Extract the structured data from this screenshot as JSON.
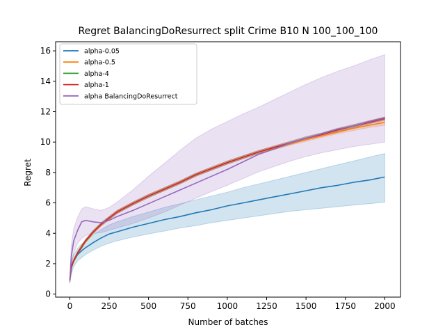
{
  "chart_data": {
    "type": "line",
    "title": "Regret BalancingDoResurrect split Crime B10 N 100_100_100",
    "xlabel": "Number of batches",
    "ylabel": "Regret",
    "xlim": [
      -90,
      2100
    ],
    "ylim": [
      -0.2,
      16.6
    ],
    "xticks": [
      0,
      250,
      500,
      750,
      1000,
      1250,
      1500,
      1750,
      2000
    ],
    "yticks": [
      0,
      2,
      4,
      6,
      8,
      10,
      12,
      14,
      16
    ],
    "grid": false,
    "legend_position": "top-left",
    "series": [
      {
        "name": "alpha-0.05",
        "color": "#1f77b4",
        "x": [
          0,
          10,
          25,
          50,
          75,
          100,
          150,
          200,
          250,
          300,
          400,
          500,
          600,
          700,
          800,
          900,
          1000,
          1100,
          1200,
          1300,
          1400,
          1500,
          1600,
          1700,
          1800,
          1900,
          2000
        ],
        "y": [
          0.9,
          1.7,
          2.2,
          2.6,
          2.85,
          3.05,
          3.4,
          3.7,
          3.95,
          4.1,
          4.4,
          4.65,
          4.9,
          5.1,
          5.35,
          5.55,
          5.8,
          6.0,
          6.2,
          6.4,
          6.6,
          6.8,
          7.0,
          7.15,
          7.35,
          7.5,
          7.7
        ],
        "band_lower": [
          0.7,
          1.3,
          1.8,
          2.2,
          2.4,
          2.6,
          2.9,
          3.15,
          3.35,
          3.5,
          3.75,
          3.95,
          4.15,
          4.35,
          4.5,
          4.7,
          4.85,
          5.0,
          5.15,
          5.3,
          5.45,
          5.55,
          5.65,
          5.75,
          5.85,
          5.95,
          6.05
        ],
        "band_upper": [
          1.1,
          2.1,
          2.6,
          3.0,
          3.3,
          3.5,
          3.9,
          4.25,
          4.55,
          4.75,
          5.1,
          5.4,
          5.7,
          5.95,
          6.2,
          6.45,
          6.7,
          7.0,
          7.25,
          7.5,
          7.75,
          8.0,
          8.25,
          8.5,
          8.75,
          9.0,
          9.25
        ]
      },
      {
        "name": "alpha-0.5",
        "color": "#ff7f0e",
        "x": [
          0,
          10,
          25,
          50,
          75,
          100,
          150,
          200,
          250,
          300,
          400,
          500,
          600,
          700,
          800,
          900,
          1000,
          1100,
          1200,
          1300,
          1400,
          1500,
          1600,
          1700,
          1800,
          1900,
          2000
        ],
        "y": [
          0.9,
          1.8,
          2.2,
          2.7,
          3.1,
          3.5,
          4.1,
          4.6,
          5.0,
          5.4,
          5.95,
          6.45,
          6.9,
          7.35,
          7.85,
          8.25,
          8.65,
          9.0,
          9.35,
          9.6,
          9.9,
          10.15,
          10.4,
          10.65,
          10.9,
          11.1,
          11.3
        ],
        "band_lower": [
          0.8,
          1.7,
          2.1,
          2.6,
          3.0,
          3.4,
          4.0,
          4.5,
          4.9,
          5.3,
          5.85,
          6.35,
          6.8,
          7.25,
          7.75,
          8.15,
          8.55,
          8.9,
          9.25,
          9.5,
          9.8,
          10.05,
          10.3,
          10.55,
          10.75,
          10.95,
          11.1
        ],
        "band_upper": [
          1.0,
          1.9,
          2.3,
          2.8,
          3.2,
          3.6,
          4.2,
          4.7,
          5.1,
          5.5,
          6.05,
          6.55,
          7.0,
          7.45,
          7.95,
          8.35,
          8.75,
          9.1,
          9.45,
          9.7,
          10.0,
          10.25,
          10.5,
          10.75,
          11.05,
          11.25,
          11.5
        ]
      },
      {
        "name": "alpha-4",
        "color": "#2ca02c",
        "x": [
          0,
          10,
          25,
          50,
          75,
          100,
          150,
          200,
          250,
          300,
          400,
          500,
          600,
          700,
          800,
          900,
          1000,
          1100,
          1200,
          1300,
          1400,
          1500,
          1600,
          1700,
          1800,
          1900,
          2000
        ],
        "y": [
          0.9,
          1.8,
          2.2,
          2.7,
          3.1,
          3.5,
          4.1,
          4.6,
          5.0,
          5.4,
          5.95,
          6.45,
          6.9,
          7.35,
          7.85,
          8.25,
          8.65,
          9.0,
          9.35,
          9.65,
          9.95,
          10.25,
          10.5,
          10.8,
          11.05,
          11.3,
          11.55
        ],
        "band_lower": [
          0.8,
          1.7,
          2.1,
          2.6,
          3.0,
          3.4,
          4.0,
          4.5,
          4.9,
          5.3,
          5.85,
          6.35,
          6.8,
          7.25,
          7.75,
          8.15,
          8.55,
          8.9,
          9.25,
          9.55,
          9.85,
          10.15,
          10.4,
          10.7,
          10.95,
          11.2,
          11.45
        ],
        "band_upper": [
          1.0,
          1.9,
          2.3,
          2.8,
          3.2,
          3.6,
          4.2,
          4.7,
          5.1,
          5.5,
          6.05,
          6.55,
          7.0,
          7.45,
          7.95,
          8.35,
          8.75,
          9.1,
          9.45,
          9.75,
          10.05,
          10.35,
          10.6,
          10.9,
          11.15,
          11.4,
          11.65
        ]
      },
      {
        "name": "alpha-1",
        "color": "#d62728",
        "x": [
          0,
          10,
          25,
          50,
          75,
          100,
          150,
          200,
          250,
          300,
          400,
          500,
          600,
          700,
          800,
          900,
          1000,
          1100,
          1200,
          1300,
          1400,
          1500,
          1600,
          1700,
          1800,
          1900,
          2000
        ],
        "y": [
          0.9,
          1.8,
          2.2,
          2.7,
          3.1,
          3.5,
          4.1,
          4.6,
          5.0,
          5.4,
          5.95,
          6.45,
          6.9,
          7.35,
          7.85,
          8.25,
          8.65,
          9.0,
          9.35,
          9.65,
          9.95,
          10.25,
          10.5,
          10.8,
          11.05,
          11.3,
          11.55
        ],
        "band_lower": [
          0.8,
          1.7,
          2.1,
          2.6,
          3.0,
          3.4,
          4.0,
          4.5,
          4.9,
          5.3,
          5.85,
          6.35,
          6.8,
          7.25,
          7.75,
          8.15,
          8.55,
          8.9,
          9.25,
          9.55,
          9.85,
          10.15,
          10.4,
          10.7,
          10.95,
          11.2,
          11.45
        ],
        "band_upper": [
          1.0,
          1.9,
          2.3,
          2.8,
          3.2,
          3.6,
          4.2,
          4.7,
          5.1,
          5.5,
          6.05,
          6.55,
          7.0,
          7.45,
          7.95,
          8.35,
          8.75,
          9.1,
          9.45,
          9.75,
          10.05,
          10.35,
          10.6,
          10.9,
          11.15,
          11.4,
          11.65
        ]
      },
      {
        "name": "alpha BalancingDoResurrect",
        "color": "#9467bd",
        "x": [
          0,
          10,
          25,
          50,
          75,
          100,
          150,
          200,
          250,
          300,
          400,
          500,
          600,
          700,
          800,
          900,
          1000,
          1100,
          1200,
          1300,
          1400,
          1500,
          1600,
          1700,
          1800,
          1900,
          2000
        ],
        "y": [
          0.9,
          2.5,
          3.5,
          4.2,
          4.75,
          4.85,
          4.75,
          4.7,
          4.85,
          5.1,
          5.5,
          5.95,
          6.4,
          6.85,
          7.3,
          7.75,
          8.2,
          8.7,
          9.2,
          9.55,
          9.95,
          10.25,
          10.55,
          10.85,
          11.05,
          11.35,
          11.6
        ],
        "band_lower": [
          0.7,
          1.8,
          2.7,
          3.35,
          3.65,
          3.85,
          4.0,
          4.05,
          4.2,
          4.35,
          4.65,
          5.0,
          5.4,
          5.85,
          6.3,
          6.75,
          7.15,
          7.6,
          8.05,
          8.4,
          8.75,
          9.05,
          9.3,
          9.5,
          9.7,
          9.85,
          10.0
        ],
        "band_upper": [
          1.1,
          3.2,
          4.3,
          5.05,
          5.6,
          5.75,
          5.6,
          5.5,
          5.7,
          6.05,
          6.85,
          7.75,
          8.6,
          9.45,
          10.25,
          10.85,
          11.35,
          11.85,
          12.3,
          12.8,
          13.3,
          13.8,
          14.25,
          14.65,
          15.0,
          15.4,
          15.75
        ]
      }
    ]
  }
}
